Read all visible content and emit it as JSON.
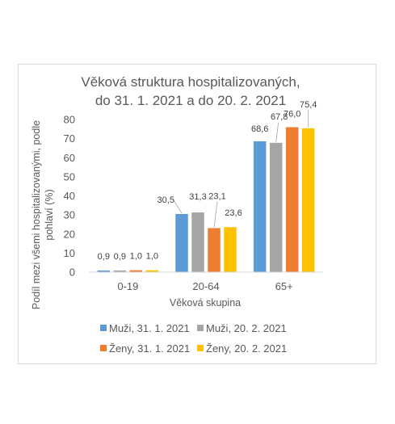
{
  "chart_data": {
    "type": "bar",
    "title_lines": [
      "Věková struktura hospitalizovaných,",
      "do 31. 1. 2021 a do 20. 2. 2021"
    ],
    "xlabel": "Věková skupina",
    "ylabel_lines": [
      "Podíl mezi všemi hospitalizovanými, podle",
      "pohlaví (%)"
    ],
    "categories": [
      "0-19",
      "20-64",
      "65+"
    ],
    "ylim": [
      0,
      80
    ],
    "yticks": [
      0,
      10,
      20,
      30,
      40,
      50,
      60,
      70,
      80
    ],
    "grid": false,
    "legend_position": "bottom",
    "series": [
      {
        "name": "Muži, 31. 1. 2021",
        "color": "#5b9bd5",
        "values": [
          0.9,
          30.5,
          68.6
        ],
        "labels": [
          "0,9",
          "30,5",
          "68,6"
        ]
      },
      {
        "name": "Muži, 20. 2. 2021",
        "color": "#a5a5a5",
        "values": [
          0.9,
          31.3,
          67.8
        ],
        "labels": [
          "0,9",
          "31,3",
          "67,8"
        ]
      },
      {
        "name": "Ženy, 31. 1. 2021",
        "color": "#ed7d31",
        "values": [
          1.0,
          23.1,
          76.0
        ],
        "labels": [
          "1,0",
          "23,1",
          "76,0"
        ]
      },
      {
        "name": "Ženy, 20. 2. 2021",
        "color": "#ffc000",
        "values": [
          1.0,
          23.6,
          75.4
        ],
        "labels": [
          "1,0",
          "23,6",
          "75,4"
        ]
      }
    ]
  }
}
